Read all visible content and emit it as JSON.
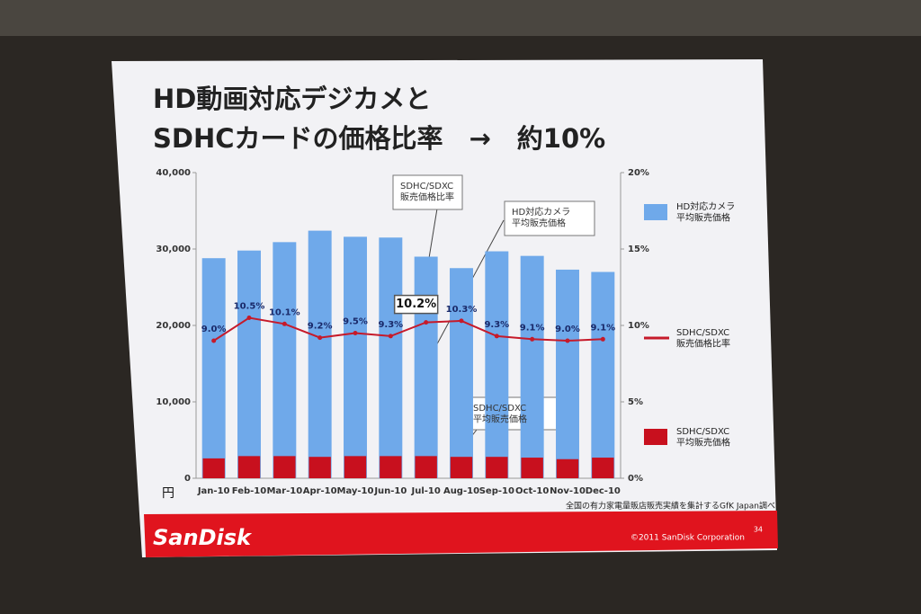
{
  "chart_data": {
    "type": "bar-line",
    "title": [
      "HD動画対応デジカメと",
      "SDHCカードの価格比率　→　約10%"
    ],
    "y_unit": "円",
    "categories": [
      "Jan-10",
      "Feb-10",
      "Mar-10",
      "Apr-10",
      "May-10",
      "Jun-10",
      "Jul-10",
      "Aug-10",
      "Sep-10",
      "Oct-10",
      "Nov-10",
      "Dec-10"
    ],
    "series": [
      {
        "name": "HD対応カメラ\n平均販売価格",
        "type": "bar",
        "axis": "y",
        "color": "#6fa9ea",
        "values": [
          28800,
          29800,
          30900,
          32400,
          31600,
          31500,
          29000,
          27500,
          29700,
          29100,
          27300,
          27000
        ]
      },
      {
        "name": "SDHC/SDXC\n販売価格比率",
        "type": "line",
        "axis": "y2",
        "color": "#c61a2a",
        "values": [
          9.0,
          10.5,
          10.1,
          9.2,
          9.5,
          9.3,
          10.2,
          10.3,
          9.3,
          9.1,
          9.0,
          9.1
        ],
        "value_labels": [
          "9.0%",
          "10.5%",
          "10.1%",
          "9.2%",
          "9.5%",
          "9.3%",
          "10.2%",
          "10.3%",
          "9.3%",
          "9.1%",
          "9.0%",
          "9.1%"
        ]
      },
      {
        "name": "SDHC/SDXC\n平均販売価格",
        "type": "bar",
        "axis": "y",
        "color": "#c8101e",
        "values": [
          2600,
          2900,
          2900,
          2800,
          2900,
          2900,
          2900,
          2800,
          2800,
          2700,
          2500,
          2700
        ]
      }
    ],
    "ylim": [
      0,
      40000
    ],
    "yticks": [
      0,
      {
        "value": 10000,
        "label": "10,000"
      },
      {
        "value": 20000,
        "label": "20,000"
      },
      {
        "value": 30000,
        "label": "30,000"
      },
      {
        "value": 40000,
        "label": "40,000"
      }
    ],
    "y2lim": [
      0,
      20
    ],
    "y2ticks": [
      {
        "value": 0,
        "label": "0%"
      },
      {
        "value": 5,
        "label": "5%"
      },
      {
        "value": 10,
        "label": "10%"
      },
      {
        "value": 15,
        "label": "15%"
      },
      {
        "value": 20,
        "label": "20%"
      }
    ],
    "grid": false,
    "legend": "right",
    "annotations": [
      "SDHC/SDXC\n販売価格比率",
      "HD対応カメラ\n平均販売価格",
      "SDHC/SDXC\n平均販売価格"
    ],
    "source": "全国の有力家電量販店販売実績を集計するGfK Japan調べ"
  },
  "footer": {
    "brand": "SanDisk",
    "copyright": "©2011 SanDisk Corporation",
    "page": "34"
  }
}
